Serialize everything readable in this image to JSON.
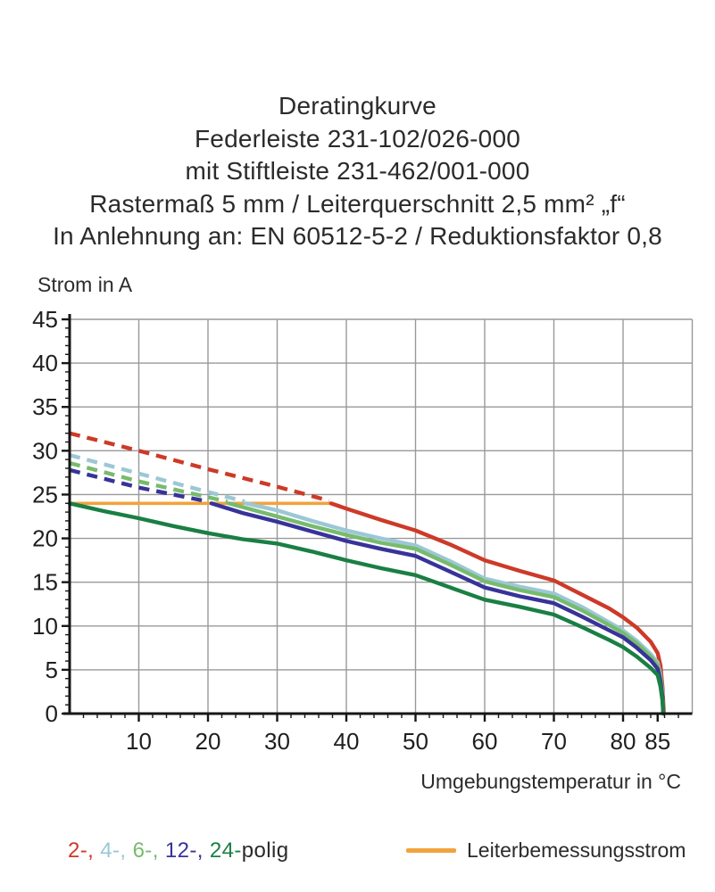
{
  "title": {
    "lines": [
      "Deratingkurve",
      "Federleiste 231-102/026-000",
      "mit Stiftleiste 231-462/001-000",
      "Rastermaß 5 mm / Leiterquerschnitt 2,5 mm² „f“",
      "In Anlehnung an: EN 60512-5-2 / Reduktionsfaktor 0,8"
    ]
  },
  "chart_data": {
    "type": "line",
    "title": "Deratingkurve",
    "xlabel": "Umgebungstemperatur in °C",
    "ylabel": "Strom in A",
    "xlim": [
      0,
      90
    ],
    "ylim": [
      0,
      45
    ],
    "x_ticks": [
      10,
      20,
      30,
      40,
      50,
      60,
      70,
      80,
      85
    ],
    "x_gridline_step": 10,
    "x_minor_tick_step": 2,
    "y_ticks": [
      0,
      5,
      10,
      15,
      20,
      25,
      30,
      35,
      40,
      45
    ],
    "y_minor_tick_step": 1,
    "grid": true,
    "grid_color": "#999999",
    "axis_color": "#161616",
    "legend_position": "bottom",
    "rated_line": {
      "label": "Leiterbemessungsstrom",
      "color": "#f1a33d",
      "value": 24,
      "x_start": 0,
      "x_end": 37.8
    },
    "series": [
      {
        "name": "2-polig",
        "color": "#cd3a28",
        "segments": [
          {
            "style": "dashed",
            "points": [
              [
                0,
                32
              ],
              [
                10,
                30
              ],
              [
                20,
                27.9
              ],
              [
                30,
                25.9
              ],
              [
                37.5,
                24.3
              ]
            ]
          },
          {
            "style": "solid",
            "points": [
              [
                37.8,
                24
              ],
              [
                40,
                23.4
              ],
              [
                45,
                22.1
              ],
              [
                50,
                20.9
              ],
              [
                55,
                19.3
              ],
              [
                60,
                17.5
              ],
              [
                65,
                16.3
              ],
              [
                70,
                15.2
              ],
              [
                74,
                13.6
              ],
              [
                78,
                12.0
              ],
              [
                80,
                11.0
              ],
              [
                82,
                9.8
              ],
              [
                84,
                8.2
              ],
              [
                85,
                6.9
              ],
              [
                85.4,
                5.5
              ],
              [
                85.7,
                3.0
              ],
              [
                85.9,
                0
              ]
            ]
          }
        ]
      },
      {
        "name": "4-polig",
        "color": "#9cc7d6",
        "segments": [
          {
            "style": "dashed",
            "points": [
              [
                0,
                29.5
              ],
              [
                10,
                27.4
              ],
              [
                20,
                25.3
              ],
              [
                25.3,
                24.2
              ]
            ]
          },
          {
            "style": "solid",
            "points": [
              [
                25.5,
                24
              ],
              [
                30,
                23.2
              ],
              [
                35,
                22.0
              ],
              [
                40,
                20.9
              ],
              [
                45,
                20.0
              ],
              [
                50,
                19.2
              ],
              [
                55,
                17.4
              ],
              [
                60,
                15.4
              ],
              [
                65,
                14.5
              ],
              [
                70,
                13.7
              ],
              [
                74,
                12.2
              ],
              [
                78,
                10.4
              ],
              [
                80,
                9.5
              ],
              [
                82,
                8.3
              ],
              [
                84,
                6.8
              ],
              [
                85,
                5.8
              ],
              [
                85.4,
                4.4
              ],
              [
                85.7,
                2.4
              ],
              [
                85.8,
                0
              ]
            ]
          }
        ]
      },
      {
        "name": "6-polig",
        "color": "#77bb6d",
        "segments": [
          {
            "style": "dashed",
            "points": [
              [
                0,
                28.6
              ],
              [
                10,
                26.5
              ],
              [
                20,
                24.7
              ],
              [
                22.8,
                24.2
              ]
            ]
          },
          {
            "style": "solid",
            "points": [
              [
                23,
                24
              ],
              [
                30,
                22.5
              ],
              [
                35,
                21.4
              ],
              [
                40,
                20.4
              ],
              [
                45,
                19.5
              ],
              [
                50,
                18.8
              ],
              [
                55,
                17.0
              ],
              [
                60,
                15.1
              ],
              [
                65,
                14.1
              ],
              [
                70,
                13.3
              ],
              [
                74,
                11.8
              ],
              [
                78,
                10.1
              ],
              [
                80,
                9.2
              ],
              [
                82,
                8.0
              ],
              [
                84,
                6.5
              ],
              [
                85,
                5.5
              ],
              [
                85.4,
                4.1
              ],
              [
                85.7,
                2.1
              ],
              [
                85.8,
                0
              ]
            ]
          }
        ]
      },
      {
        "name": "12-polig",
        "color": "#37339a",
        "segments": [
          {
            "style": "dashed",
            "points": [
              [
                0,
                27.8
              ],
              [
                10,
                25.8
              ],
              [
                20,
                24.2
              ]
            ]
          },
          {
            "style": "solid",
            "points": [
              [
                20.5,
                24
              ],
              [
                25,
                22.9
              ],
              [
                30,
                21.9
              ],
              [
                35,
                20.8
              ],
              [
                40,
                19.7
              ],
              [
                45,
                18.8
              ],
              [
                50,
                18.0
              ],
              [
                55,
                16.2
              ],
              [
                60,
                14.4
              ],
              [
                65,
                13.4
              ],
              [
                70,
                12.6
              ],
              [
                74,
                11.1
              ],
              [
                78,
                9.5
              ],
              [
                80,
                8.7
              ],
              [
                82,
                7.5
              ],
              [
                84,
                6.1
              ],
              [
                85,
                5.1
              ],
              [
                85.4,
                3.7
              ],
              [
                85.7,
                1.8
              ],
              [
                85.8,
                0
              ]
            ]
          }
        ]
      },
      {
        "name": "24-polig",
        "color": "#1a7f44",
        "segments": [
          {
            "style": "solid",
            "points": [
              [
                0,
                24
              ],
              [
                5,
                23.1
              ],
              [
                10,
                22.3
              ],
              [
                15,
                21.4
              ],
              [
                20,
                20.6
              ],
              [
                25,
                19.9
              ],
              [
                30,
                19.4
              ],
              [
                35,
                18.5
              ],
              [
                40,
                17.5
              ],
              [
                45,
                16.6
              ],
              [
                50,
                15.8
              ],
              [
                55,
                14.4
              ],
              [
                60,
                13.0
              ],
              [
                65,
                12.2
              ],
              [
                70,
                11.3
              ],
              [
                74,
                9.9
              ],
              [
                78,
                8.4
              ],
              [
                80,
                7.6
              ],
              [
                82,
                6.5
              ],
              [
                84,
                5.2
              ],
              [
                85,
                4.4
              ],
              [
                85.4,
                3.1
              ],
              [
                85.7,
                1.4
              ],
              [
                85.8,
                0
              ]
            ]
          }
        ]
      }
    ]
  },
  "legend": {
    "poles": {
      "parts": [
        {
          "text": "2-, ",
          "color": "#cd3a28"
        },
        {
          "text": "4-, ",
          "color": "#9cc7d6"
        },
        {
          "text": "6-, ",
          "color": "#77bb6d"
        },
        {
          "text": "12-, ",
          "color": "#37339a"
        },
        {
          "text": "24-",
          "color": "#1a7f44"
        },
        {
          "text": "polig",
          "color": "#2a2a2a"
        }
      ]
    },
    "rated": {
      "label": "Leiterbemessungsstrom",
      "color": "#f1a33d"
    }
  }
}
